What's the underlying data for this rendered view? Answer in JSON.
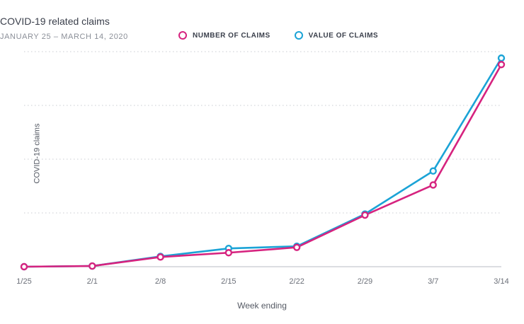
{
  "chart_data": {
    "type": "line",
    "title": "COVID-19 related claims",
    "subtitle": "JANUARY 25 – MARCH 14, 2020",
    "xlabel": "Week ending",
    "ylabel": "COVID-19 claims",
    "categories": [
      "1/25",
      "2/1",
      "2/8",
      "2/15",
      "2/22",
      "2/29",
      "3/7",
      "3/14"
    ],
    "ylim": [
      0,
      100
    ],
    "grid": true,
    "legend_position": "top",
    "series": [
      {
        "name": "NUMBER OF CLAIMS",
        "color": "#d6237f",
        "values": [
          0,
          0.3,
          4.5,
          6.5,
          9,
          24,
          38,
          94
        ]
      },
      {
        "name": "VALUE OF CLAIMS",
        "color": "#1ba3d6",
        "values": [
          0,
          0.3,
          4.8,
          8.5,
          9.5,
          24.5,
          44.5,
          97
        ]
      }
    ]
  }
}
